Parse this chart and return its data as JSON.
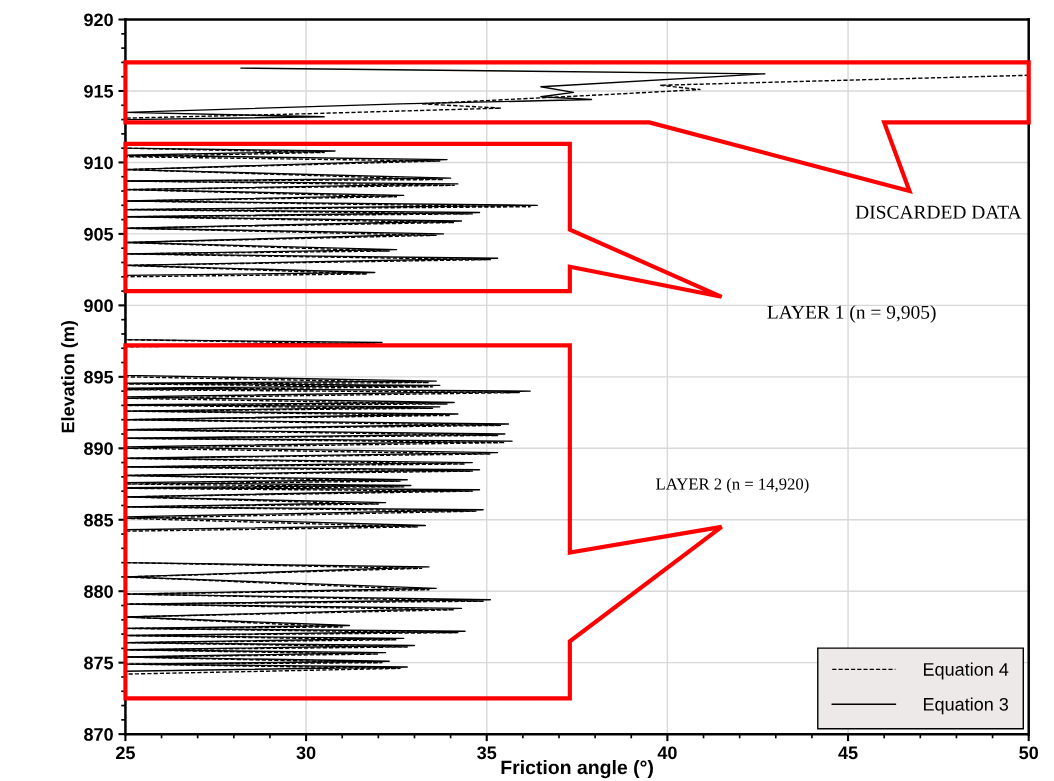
{
  "chart_data": {
    "type": "line",
    "xlabel": "Friction angle (°)",
    "ylabel": "Elevation (m)",
    "xlim": [
      25,
      50
    ],
    "xticks": [
      25,
      30,
      35,
      40,
      45,
      50
    ],
    "ylim": [
      870,
      920
    ],
    "yticks": [
      870,
      875,
      880,
      885,
      890,
      895,
      900,
      905,
      910,
      915,
      920
    ],
    "grid": true,
    "legend": "bottom right",
    "marker": "none",
    "annotations": [
      "DISCARDED DATA",
      "LAYER 1 (n = 9,905)",
      "LAYER 2 (n = 14,920)"
    ],
    "series": [
      {
        "name": "Equation 4",
        "color": "#000000",
        "line_style": "dashed",
        "x": [
          50,
          39.8,
          40.9,
          38.7,
          33.2,
          35.4,
          29.9,
          25,
          25,
          30.5,
          25,
          33.7,
          25,
          33.8,
          25,
          34.1,
          25,
          32.5,
          25,
          36.2,
          25,
          34.6,
          25,
          34.1,
          25,
          33.6,
          25,
          32.3,
          25,
          35.1,
          25,
          31.7,
          25,
          25,
          31.9,
          25,
          25,
          33.4,
          25,
          33.5,
          25,
          35.9,
          25,
          33.9,
          25,
          33.5,
          25,
          34.0,
          25,
          35.4,
          25,
          35.3,
          25,
          35.5,
          25,
          35.1,
          25,
          34.4,
          25,
          34.6,
          25,
          32.6,
          25,
          32.7,
          25,
          34.6,
          25,
          32.0,
          25,
          34.7,
          25,
          33.1,
          25,
          25,
          33.2,
          25,
          33.4,
          25,
          34.9,
          25,
          34.1,
          25,
          31.0,
          25,
          34.2,
          25,
          32.5,
          25,
          32.8,
          25,
          32.0,
          25,
          32.1,
          25,
          32.6,
          25
        ],
        "values": [
          916.1,
          915.4,
          915.1,
          914.8,
          914.1,
          913.8,
          913.4,
          913.1,
          911.0,
          910.7,
          910.4,
          910.1,
          909.5,
          908.8,
          908.7,
          908.4,
          908.1,
          907.6,
          907.3,
          906.9,
          906.7,
          906.4,
          906.2,
          905.8,
          905.4,
          904.9,
          904.4,
          903.8,
          903.6,
          903.2,
          902.8,
          902.2,
          902.0,
          897.6,
          897.3,
          897.1,
          895.0,
          894.6,
          894.5,
          894.3,
          894.1,
          893.9,
          893.5,
          893.1,
          893.0,
          892.8,
          892.6,
          892.3,
          892.0,
          891.6,
          891.3,
          890.9,
          890.7,
          890.4,
          890.0,
          889.6,
          889.3,
          888.9,
          888.7,
          888.4,
          888.1,
          887.7,
          887.5,
          887.3,
          887.2,
          887.0,
          886.6,
          886.1,
          885.9,
          885.6,
          885.1,
          884.5,
          884.2,
          882.0,
          881.6,
          881.0,
          880.1,
          879.8,
          879.3,
          879.1,
          878.7,
          878.2,
          877.5,
          877.4,
          877.1,
          876.9,
          876.6,
          876.4,
          876.1,
          875.9,
          875.6,
          875.4,
          875.0,
          874.9,
          874.6,
          874.2
        ]
      },
      {
        "name": "Equation 3",
        "color": "#000000",
        "line_style": "solid",
        "x": [
          28.2,
          42.7,
          36.5,
          37.4,
          36.5,
          37.9,
          32.6,
          25,
          30.5,
          25,
          25,
          30.8,
          25,
          33.9,
          25,
          34.0,
          25,
          34.2,
          25,
          32.7,
          25,
          36.4,
          25,
          34.8,
          25,
          34.3,
          25,
          33.8,
          25,
          32.5,
          25,
          35.3,
          25,
          31.9,
          25,
          25,
          32.1,
          25,
          25,
          33.6,
          25,
          33.7,
          25,
          36.2,
          25,
          34.1,
          25,
          33.7,
          25,
          34.2,
          25,
          35.6,
          25,
          35.5,
          25,
          35.7,
          25,
          35.3,
          25,
          34.6,
          25,
          34.8,
          25,
          32.8,
          25,
          32.9,
          25,
          34.8,
          25,
          32.2,
          25,
          34.9,
          25,
          33.3,
          25,
          25,
          33.4,
          25,
          33.6,
          25,
          35.1,
          25,
          34.3,
          25,
          31.2,
          25,
          34.4,
          25,
          32.7,
          25,
          33.0,
          25,
          32.2,
          25,
          32.3,
          25,
          32.8,
          25
        ],
        "values": [
          916.6,
          916.2,
          915.3,
          914.9,
          914.6,
          914.4,
          914.1,
          913.5,
          913.2,
          913.0,
          911.0,
          910.8,
          910.5,
          910.2,
          909.5,
          908.9,
          908.7,
          908.5,
          908.1,
          907.7,
          907.3,
          907.0,
          906.7,
          906.5,
          906.2,
          905.9,
          905.4,
          905.0,
          904.4,
          903.9,
          903.6,
          903.3,
          902.8,
          902.3,
          902.1,
          897.6,
          897.4,
          897.2,
          895.1,
          894.7,
          894.55,
          894.4,
          894.2,
          894.0,
          893.6,
          893.2,
          893.05,
          892.9,
          892.6,
          892.4,
          892.0,
          891.7,
          891.3,
          891.0,
          890.7,
          890.5,
          890.1,
          889.7,
          889.3,
          889.0,
          888.7,
          888.5,
          888.1,
          887.8,
          887.6,
          887.4,
          887.25,
          887.1,
          886.6,
          886.2,
          885.9,
          885.7,
          885.2,
          884.6,
          884.3,
          882.0,
          881.7,
          881.0,
          880.2,
          879.8,
          879.4,
          879.1,
          878.8,
          878.2,
          877.6,
          877.4,
          877.2,
          876.9,
          876.7,
          876.4,
          876.2,
          875.9,
          875.7,
          875.4,
          875.1,
          874.9,
          874.7,
          874.4
        ]
      }
    ]
  }
}
